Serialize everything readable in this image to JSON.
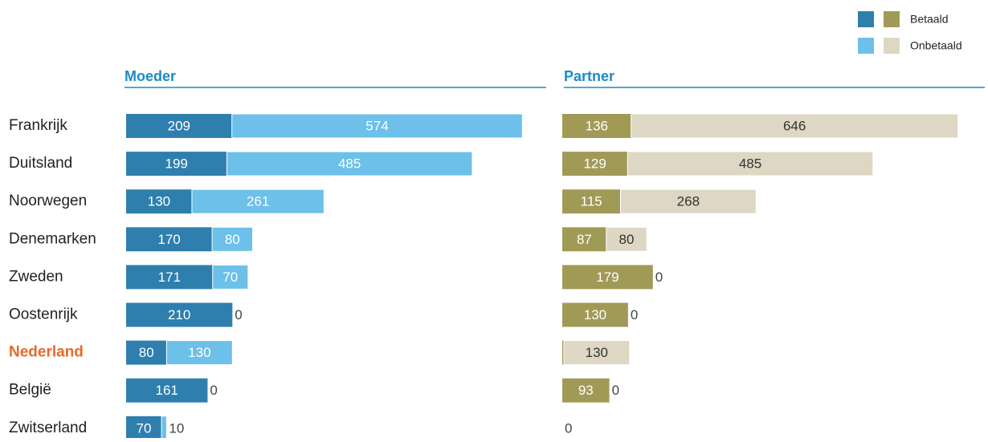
{
  "legend": {
    "labels": [
      "Betaald",
      "Onbetaald"
    ]
  },
  "chart_data": [
    {
      "type": "stacked-bar",
      "title": "Moeder",
      "categories": [
        "Frankrijk",
        "Duitsland",
        "Noorwegen",
        "Denemarken",
        "Zweden",
        "Oostenrijk",
        "Nederland",
        "België",
        "Zwitserland"
      ],
      "category_label_colors": [
        "#222",
        "#222",
        "#222",
        "#222",
        "#222",
        "#222",
        "#e8692a",
        "#222",
        "#222"
      ],
      "series": [
        {
          "color": "#2e7fae",
          "label_color": "#ffffff",
          "values": [
            209,
            199,
            130,
            170,
            171,
            210,
            80,
            161,
            70
          ]
        },
        {
          "color": "#6cc0ea",
          "label_color": "#ffffff",
          "values": [
            574,
            485,
            261,
            80,
            70,
            0,
            130,
            0,
            10
          ]
        }
      ]
    },
    {
      "type": "stacked-bar",
      "title": "Partner",
      "categories": [
        "Frankrijk",
        "Duitsland",
        "Noorwegen",
        "Denemarken",
        "Zweden",
        "Oostenrijk",
        "Nederland",
        "België",
        "Zwitserland"
      ],
      "series": [
        {
          "color": "#a19a57",
          "label_color": "#ffffff",
          "values": [
            136,
            129,
            115,
            87,
            179,
            130,
            3,
            93,
            0
          ]
        },
        {
          "color": "#ddd7c3",
          "label_color": "#333333",
          "values": [
            646,
            485,
            268,
            80,
            0,
            0,
            130,
            0,
            null
          ]
        }
      ]
    }
  ]
}
